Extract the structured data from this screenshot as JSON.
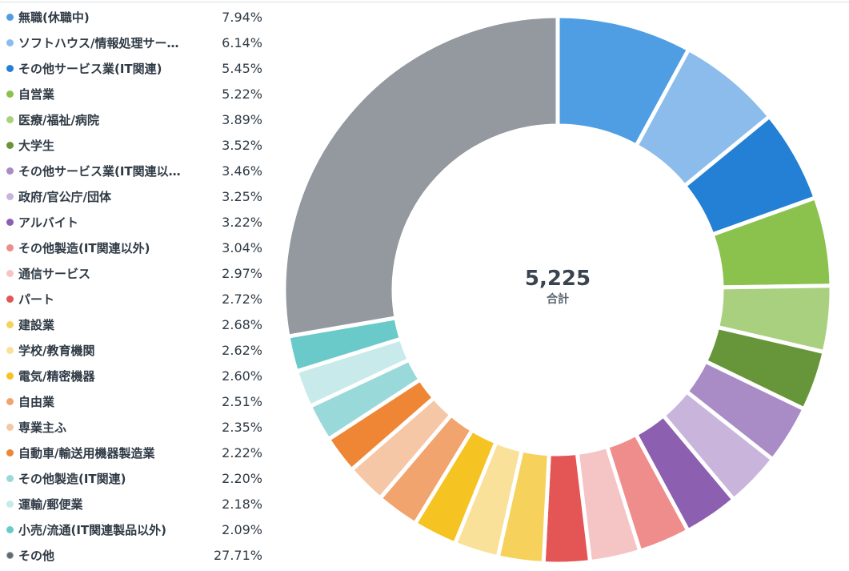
{
  "chart_data": {
    "type": "pie",
    "variant": "donut",
    "center_value": "5,225",
    "center_label": "合計",
    "legend_position": "left",
    "categories": [
      {
        "label": "無職(休職中)",
        "pct_label": "7.94%",
        "value": 7.94,
        "color": "#4f9ee3"
      },
      {
        "label": "ソフトハウス/情報処理サー…",
        "pct_label": "6.14%",
        "value": 6.14,
        "color": "#8bbcec"
      },
      {
        "label": "その他サービス業(IT関連)",
        "pct_label": "5.45%",
        "value": 5.45,
        "color": "#2380d4"
      },
      {
        "label": "自営業",
        "pct_label": "5.22%",
        "value": 5.22,
        "color": "#8bc14d"
      },
      {
        "label": "医療/福祉/病院",
        "pct_label": "3.89%",
        "value": 3.89,
        "color": "#a9d07f"
      },
      {
        "label": "大学生",
        "pct_label": "3.52%",
        "value": 3.52,
        "color": "#67963a"
      },
      {
        "label": "その他サービス業(IT関連以…",
        "pct_label": "3.46%",
        "value": 3.46,
        "color": "#a98bc6"
      },
      {
        "label": "政府/官公庁/団体",
        "pct_label": "3.25%",
        "value": 3.25,
        "color": "#c9b5dc"
      },
      {
        "label": "アルバイト",
        "pct_label": "3.22%",
        "value": 3.22,
        "color": "#8c5fb0"
      },
      {
        "label": "その他製造(IT関連以外)",
        "pct_label": "3.04%",
        "value": 3.04,
        "color": "#ef8c8c"
      },
      {
        "label": "通信サービス",
        "pct_label": "2.97%",
        "value": 2.97,
        "color": "#f5c4c4"
      },
      {
        "label": "パート",
        "pct_label": "2.72%",
        "value": 2.72,
        "color": "#e45555"
      },
      {
        "label": "建設業",
        "pct_label": "2.68%",
        "value": 2.68,
        "color": "#f6d25c"
      },
      {
        "label": "学校/教育機関",
        "pct_label": "2.62%",
        "value": 2.62,
        "color": "#fae19a"
      },
      {
        "label": "電気/精密機器",
        "pct_label": "2.60%",
        "value": 2.6,
        "color": "#f5c322"
      },
      {
        "label": "自由業",
        "pct_label": "2.51%",
        "value": 2.51,
        "color": "#f2a46e"
      },
      {
        "label": "専業主ふ",
        "pct_label": "2.35%",
        "value": 2.35,
        "color": "#f6c7a6"
      },
      {
        "label": "自動車/輸送用機器製造業",
        "pct_label": "2.22%",
        "value": 2.22,
        "color": "#ee8636"
      },
      {
        "label": "その他製造(IT関連)",
        "pct_label": "2.20%",
        "value": 2.2,
        "color": "#9ad9d9"
      },
      {
        "label": "運輸/郵便業",
        "pct_label": "2.18%",
        "value": 2.18,
        "color": "#c8eaea"
      },
      {
        "label": "小売/流通(IT関連製品以外)",
        "pct_label": "2.09%",
        "value": 2.09,
        "color": "#6ac9c9"
      },
      {
        "label": "その他",
        "pct_label": "27.71%",
        "value": 27.71,
        "color": "#93999f",
        "dot_color": "#5f6a72"
      }
    ]
  }
}
